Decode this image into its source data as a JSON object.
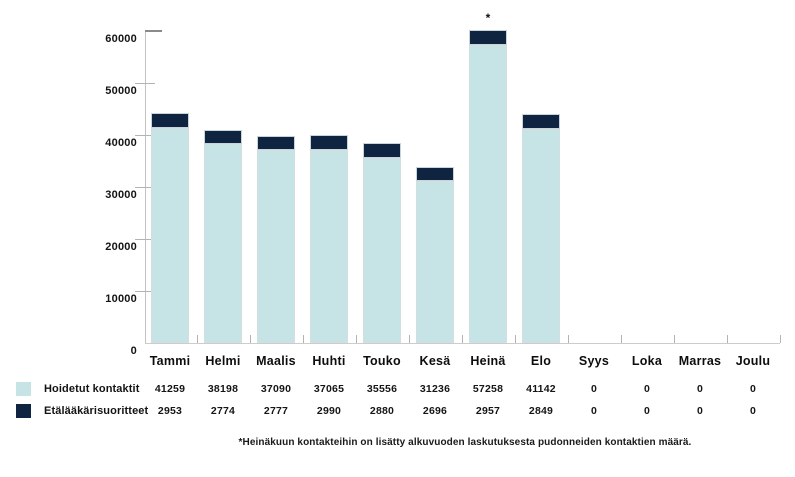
{
  "chart_data": {
    "type": "bar",
    "stacked": true,
    "categories": [
      "Tammi",
      "Helmi",
      "Maalis",
      "Huhti",
      "Touko",
      "Kesä",
      "Heinä",
      "Elo",
      "Syys",
      "Loka",
      "Marras",
      "Joulu"
    ],
    "series": [
      {
        "name": "Hoidetut kontaktit",
        "color": "#c6e3e5",
        "values": [
          41259,
          38198,
          37090,
          37065,
          35556,
          31236,
          57258,
          41142,
          0,
          0,
          0,
          0
        ]
      },
      {
        "name": "Etälääkärisuoritteet",
        "color": "#0e2441",
        "values": [
          2953,
          2774,
          2777,
          2990,
          2880,
          2696,
          2957,
          2849,
          0,
          0,
          0,
          0
        ]
      }
    ],
    "ylim": [
      0,
      60000
    ],
    "yticks": [
      0,
      10000,
      20000,
      30000,
      40000,
      50000,
      60000
    ],
    "ytick_labels": [
      "0",
      "10000",
      "20000",
      "30000",
      "40000",
      "50000",
      "60000"
    ],
    "grid": false,
    "legend_position": "bottom-left",
    "annotation": {
      "text": "*",
      "category_index": 6
    }
  },
  "footnote": "*Heinäkuun kontakteihin on lisätty alkuvuoden laskutuksesta pudonneiden kontaktien määrä."
}
